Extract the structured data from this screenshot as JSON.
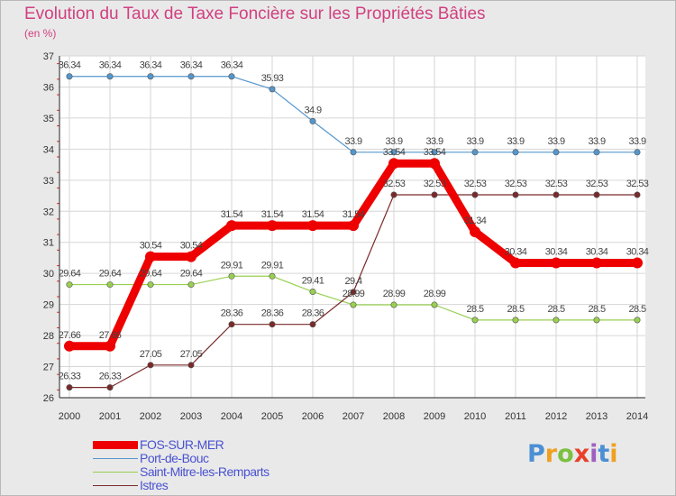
{
  "chart_data": {
    "type": "line",
    "title": "Evolution du Taux de Taxe Foncière sur les Propriétés Bâties",
    "subtitle": "(en %)",
    "xlabel": "",
    "ylabel": "",
    "x": [
      "2000",
      "2001",
      "2002",
      "2003",
      "2004",
      "2005",
      "2006",
      "2007",
      "2008",
      "2009",
      "2010",
      "2011",
      "2012",
      "2013",
      "2014"
    ],
    "ylim": [
      26,
      37
    ],
    "yticks": [
      "26",
      "27",
      "28",
      "29",
      "30",
      "31",
      "32",
      "33",
      "34",
      "35",
      "36",
      "37"
    ],
    "series": [
      {
        "name": "FOS-SUR-MER",
        "color": "#ee0000",
        "values": [
          27.66,
          27.66,
          30.54,
          30.54,
          31.54,
          31.54,
          31.54,
          31.54,
          33.54,
          33.54,
          31.34,
          30.34,
          30.34,
          30.34,
          30.34
        ],
        "labels": [
          "27.66",
          "27.66",
          "30.54",
          "30.54",
          "31.54",
          "31.54",
          "31.54",
          "31.54",
          "33.54",
          "33.54",
          "31.34",
          "30.34",
          "30.34",
          "30.34",
          "30.34"
        ]
      },
      {
        "name": "Port-de-Bouc",
        "color": "#5596cc",
        "values": [
          36.34,
          36.34,
          36.34,
          36.34,
          36.34,
          35.93,
          34.9,
          33.9,
          33.9,
          33.9,
          33.9,
          33.9,
          33.9,
          33.9,
          33.9
        ],
        "labels": [
          "36.34",
          "36.34",
          "36.34",
          "36.34",
          "36.34",
          "35.93",
          "34.9",
          "33.9",
          "33.9",
          "33.9",
          "33.9",
          "33.9",
          "33.9",
          "33.9",
          "33.9"
        ]
      },
      {
        "name": "Saint-Mitre-les-Remparts",
        "color": "#99d050",
        "values": [
          29.64,
          29.64,
          29.64,
          29.64,
          29.91,
          29.91,
          29.41,
          28.99,
          28.99,
          28.99,
          28.5,
          28.5,
          28.5,
          28.5,
          28.5
        ],
        "labels": [
          "29.64",
          "29.64",
          "29.64",
          "29.64",
          "29.91",
          "29.91",
          "29.41",
          "28.99",
          "28.99",
          "28.99",
          "28.5",
          "28.5",
          "28.5",
          "28.5",
          "28.5"
        ]
      },
      {
        "name": "Istres",
        "color": "#7a2a2a",
        "values": [
          26.33,
          26.33,
          27.05,
          27.05,
          28.36,
          28.36,
          28.36,
          29.4,
          32.53,
          32.53,
          32.53,
          32.53,
          32.53,
          32.53,
          32.53
        ],
        "labels": [
          "26.33",
          "26.33",
          "27.05",
          "27.05",
          "28.36",
          "28.36",
          "28.36",
          "29.4",
          "32.53",
          "32.53",
          "32.53",
          "32.53",
          "32.53",
          "32.53",
          "32.53"
        ]
      }
    ]
  },
  "logo": {
    "letters": [
      "P",
      "r",
      "o",
      "x",
      "i",
      "t",
      "i"
    ],
    "colors": [
      "#4b8fd4",
      "#f0a020",
      "#7cc040",
      "#e8402a",
      "#a060c0",
      "#4b8fd4",
      "#f0a020"
    ]
  }
}
